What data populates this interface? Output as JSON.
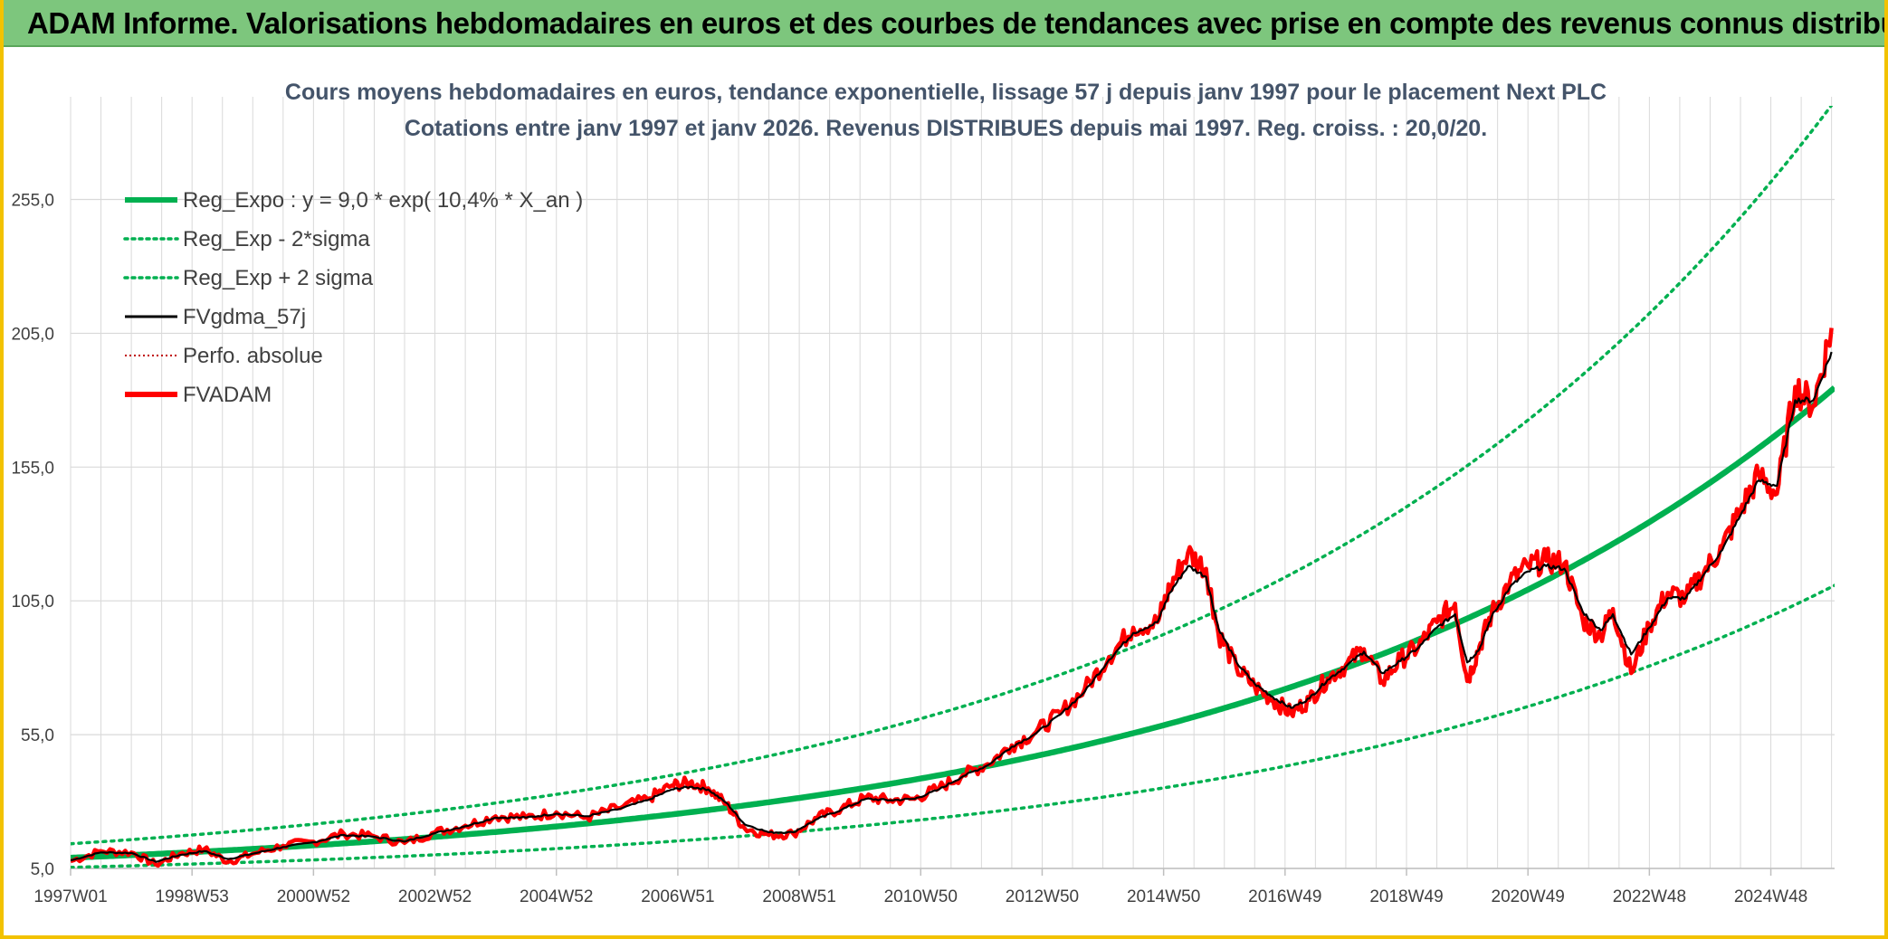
{
  "header": {
    "title": "ADAM Informe. Valorisations hebdomadaires en euros et des courbes de tendances avec prise en compte des revenus connus distribués"
  },
  "colors": {
    "banner_bg": "#7dc67d",
    "frame": "#f2c200",
    "regression": "#00b050",
    "fvadam": "#ff0000",
    "gdma": "#000000",
    "perfo": "#c00000",
    "grid": "#d9d9d9"
  },
  "chart_data": {
    "type": "line",
    "title_lines": [
      "Cours moyens hebdomadaires en euros, tendance exponentielle, lissage 57 j depuis janv 1997 pour le placement Next PLC",
      "Cotations entre janv 1997 et janv 2026. Revenus DISTRIBUES depuis mai 1997. Reg. croiss. : 20,0/20."
    ],
    "x_tick_labels": [
      "1997W01",
      "1998W53",
      "2000W52",
      "2002W52",
      "2004W52",
      "2006W51",
      "2008W51",
      "2010W50",
      "2012W50",
      "2014W50",
      "2016W49",
      "2018W49",
      "2020W49",
      "2022W48",
      "2024W48"
    ],
    "y_tick_labels": [
      "5,0",
      "55,0",
      "105,0",
      "155,0",
      "205,0",
      "255,0"
    ],
    "y_ticks": [
      5,
      55,
      105,
      155,
      205,
      255
    ],
    "xlim": [
      1997.0,
      2026.05
    ],
    "ylim": [
      5,
      290
    ],
    "grid": true,
    "legend_position": "top-left",
    "legend": [
      {
        "label": "Reg_Expo : y = 9,0 * exp( 10,4% *  X_an )",
        "color": "#00b050",
        "style": "solid-thick"
      },
      {
        "label": "Reg_Exp - 2*sigma",
        "color": "#00b050",
        "style": "dotted"
      },
      {
        "label": "Reg_Exp + 2 sigma",
        "color": "#00b050",
        "style": "dotted"
      },
      {
        "label": "FVgdma_57j",
        "color": "#000000",
        "style": "solid"
      },
      {
        "label": "Perfo. absolue",
        "color": "#c00000",
        "style": "dotted-thin"
      },
      {
        "label": "FVADAM",
        "color": "#ff0000",
        "style": "solid-thick"
      }
    ],
    "regression": {
      "a": 9.0,
      "rate": 0.104,
      "x0": 1997.0
    },
    "band_factors": {
      "lower": 0.6,
      "upper": 1.58
    },
    "series": [
      {
        "name": "FVADAM",
        "x": [
          1997.0,
          1997.5,
          1998.0,
          1998.4,
          1998.8,
          1999.2,
          1999.6,
          2000.0,
          2000.5,
          2001.0,
          2001.5,
          2002.0,
          2002.5,
          2003.0,
          2003.5,
          2004.0,
          2004.5,
          2005.0,
          2005.5,
          2006.0,
          2006.5,
          2006.9,
          2007.2,
          2007.5,
          2007.8,
          2008.1,
          2008.5,
          2008.9,
          2009.3,
          2009.7,
          2010.1,
          2010.5,
          2010.9,
          2011.3,
          2011.7,
          2012.1,
          2012.5,
          2012.9,
          2013.3,
          2013.7,
          2014.1,
          2014.5,
          2014.9,
          2015.1,
          2015.4,
          2015.7,
          2015.9,
          2016.2,
          2016.5,
          2016.8,
          2017.1,
          2017.4,
          2017.7,
          2018.0,
          2018.3,
          2018.6,
          2018.9,
          2019.2,
          2019.5,
          2019.8,
          2020.0,
          2020.2,
          2020.4,
          2020.7,
          2021.0,
          2021.3,
          2021.6,
          2021.9,
          2022.2,
          2022.4,
          2022.7,
          2023.0,
          2023.3,
          2023.6,
          2023.9,
          2024.2,
          2024.5,
          2024.8,
          2025.1,
          2025.4,
          2025.7,
          2026.0
        ],
        "y": [
          7.7,
          11.5,
          11.0,
          6.5,
          10.5,
          12.2,
          7.5,
          10.5,
          13.5,
          15.0,
          18.0,
          17.0,
          14.5,
          18.5,
          21.0,
          24.5,
          24.0,
          26.0,
          24.0,
          27.5,
          31.0,
          36.0,
          37.0,
          35.0,
          29.0,
          20.0,
          17.5,
          18.0,
          24.0,
          27.5,
          31.5,
          30.5,
          31.0,
          35.0,
          40.0,
          44.0,
          51.0,
          56.0,
          63.0,
          72.0,
          84.0,
          95.0,
          97.0,
          110.0,
          123.0,
          117.0,
          93.0,
          80.0,
          73.0,
          68.0,
          63.0,
          68.0,
          76.0,
          81.0,
          87.0,
          75.0,
          83.0,
          88.0,
          97.0,
          104.0,
          75.0,
          88.0,
          100.0,
          112.0,
          118.0,
          120.0,
          119.0,
          98.0,
          92.0,
          102.0,
          78.0,
          96.0,
          108.0,
          106.0,
          116.0,
          125.0,
          139.0,
          152.0,
          145.0,
          185.0,
          178.0,
          207.0
        ]
      },
      {
        "name": "FVgdma_57j",
        "x": [
          1997.0,
          1997.5,
          1998.0,
          1998.4,
          1998.8,
          1999.2,
          1999.6,
          2000.0,
          2000.5,
          2001.0,
          2001.5,
          2002.0,
          2002.5,
          2003.0,
          2003.5,
          2004.0,
          2004.5,
          2005.0,
          2005.5,
          2006.0,
          2006.5,
          2006.9,
          2007.2,
          2007.5,
          2007.8,
          2008.1,
          2008.5,
          2008.9,
          2009.3,
          2009.7,
          2010.1,
          2010.5,
          2010.9,
          2011.3,
          2011.7,
          2012.1,
          2012.5,
          2012.9,
          2013.3,
          2013.7,
          2014.1,
          2014.5,
          2014.9,
          2015.1,
          2015.4,
          2015.7,
          2015.9,
          2016.2,
          2016.5,
          2016.8,
          2017.1,
          2017.4,
          2017.7,
          2018.0,
          2018.3,
          2018.6,
          2018.9,
          2019.2,
          2019.5,
          2019.8,
          2020.0,
          2020.2,
          2020.4,
          2020.7,
          2021.0,
          2021.3,
          2021.6,
          2021.9,
          2022.2,
          2022.4,
          2022.7,
          2023.0,
          2023.3,
          2023.6,
          2023.9,
          2024.2,
          2024.5,
          2024.8,
          2025.1,
          2025.4,
          2025.7,
          2026.0
        ],
        "y": [
          8.0,
          11.0,
          10.8,
          7.5,
          10.0,
          11.5,
          8.5,
          10.5,
          13.0,
          14.8,
          17.5,
          16.8,
          15.0,
          18.2,
          20.8,
          24.0,
          24.0,
          25.5,
          24.5,
          27.0,
          30.5,
          34.5,
          35.5,
          34.5,
          29.5,
          21.5,
          18.5,
          18.5,
          23.5,
          27.0,
          31.0,
          30.5,
          31.0,
          34.5,
          39.5,
          43.5,
          50.5,
          55.5,
          62.5,
          71.0,
          83.0,
          93.0,
          97.0,
          108.0,
          118.0,
          114.0,
          95.0,
          82.0,
          74.0,
          69.0,
          65.0,
          68.5,
          75.5,
          80.5,
          86.0,
          78.0,
          82.5,
          87.5,
          95.0,
          100.0,
          82.0,
          87.0,
          99.0,
          110.0,
          116.0,
          118.0,
          117.0,
          101.0,
          94.0,
          100.0,
          85.0,
          95.0,
          106.0,
          106.0,
          115.0,
          124.0,
          137.0,
          150.0,
          148.0,
          180.0,
          180.0,
          198.0
        ]
      }
    ]
  }
}
